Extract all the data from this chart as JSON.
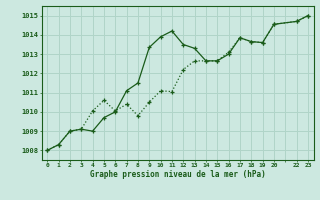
{
  "title": "Graphe pression niveau de la mer (hPa)",
  "bg_color": "#cce8e0",
  "line_color": "#1a5c1a",
  "grid_color": "#b0d4c8",
  "xlim": [
    -0.5,
    23.5
  ],
  "ylim": [
    1007.5,
    1015.5
  ],
  "yticks": [
    1008,
    1009,
    1010,
    1011,
    1012,
    1013,
    1014,
    1015
  ],
  "xtick_positions": [
    0,
    1,
    2,
    3,
    4,
    5,
    6,
    7,
    8,
    9,
    10,
    11,
    12,
    13,
    14,
    15,
    16,
    17,
    18,
    19,
    20,
    21,
    22,
    23
  ],
  "xtick_labels": [
    "0",
    "1",
    "2",
    "3",
    "4",
    "5",
    "6",
    "7",
    "8",
    "9",
    "10",
    "11",
    "12",
    "13",
    "14",
    "15",
    "16",
    "17",
    "18",
    "19",
    "20",
    "",
    "22",
    "23"
  ],
  "series1_x": [
    0,
    1,
    2,
    3,
    4,
    5,
    6,
    7,
    8,
    9,
    10,
    11,
    12,
    13,
    14,
    15,
    16,
    17,
    18,
    19,
    20,
    22,
    23
  ],
  "series1_y": [
    1008.0,
    1008.3,
    1009.0,
    1009.1,
    1009.0,
    1009.7,
    1010.0,
    1011.1,
    1011.5,
    1013.35,
    1013.9,
    1014.2,
    1013.5,
    1013.3,
    1012.65,
    1012.65,
    1013.0,
    1013.85,
    1013.65,
    1013.6,
    1014.55,
    1014.7,
    1015.0
  ],
  "series2_x": [
    0,
    1,
    2,
    3,
    4,
    5,
    6,
    7,
    8,
    9,
    10,
    11,
    12,
    13,
    14,
    15,
    16,
    17,
    18,
    19,
    20,
    22,
    23
  ],
  "series2_y": [
    1008.0,
    1008.3,
    1009.0,
    1009.1,
    1010.05,
    1010.6,
    1010.05,
    1010.4,
    1009.8,
    1010.5,
    1011.1,
    1011.05,
    1012.2,
    1012.65,
    1012.65,
    1012.65,
    1013.1,
    1013.85,
    1013.65,
    1013.6,
    1014.55,
    1014.7,
    1015.0
  ]
}
